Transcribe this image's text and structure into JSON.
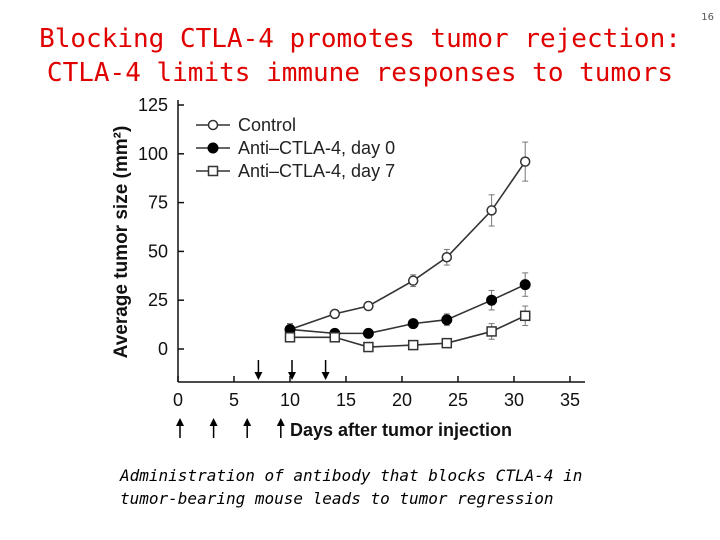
{
  "slide": {
    "title_line1": "Blocking CTLA-4 promotes tumor rejection:",
    "title_line2": "CTLA-4 limits immune responses to tumors",
    "page_number": "16",
    "caption_line1": "Administration of antibody that blocks CTLA-4 in",
    "caption_line2": "tumor-bearing mouse leads to tumor regression"
  },
  "colors": {
    "title": "#e00000",
    "axis": "#111111",
    "series": "#333333"
  },
  "chart_data": {
    "type": "line",
    "title": "",
    "xlabel": "Days after tumor injection",
    "ylabel": "Average tumor size (mm²)",
    "xlim": [
      0,
      35
    ],
    "ylim": [
      0,
      125
    ],
    "xticks": [
      0,
      5,
      10,
      15,
      20,
      25,
      30,
      35
    ],
    "yticks": [
      0,
      25,
      50,
      75,
      100,
      125
    ],
    "legend_position": "top-left",
    "series": [
      {
        "name": "Control",
        "marker": "open-circle",
        "x": [
          10,
          14,
          17,
          21,
          24,
          28,
          31
        ],
        "y": [
          10,
          18,
          22,
          35,
          47,
          71,
          96
        ],
        "err": [
          3,
          2,
          2,
          3,
          4,
          8,
          10
        ]
      },
      {
        "name": "Anti–CTLA-4, day 0",
        "marker": "filled-circle",
        "x": [
          10,
          14,
          17,
          21,
          24,
          28,
          31
        ],
        "y": [
          10,
          8,
          8,
          13,
          15,
          25,
          33
        ],
        "err": [
          3,
          2,
          2,
          2,
          3,
          5,
          6
        ]
      },
      {
        "name": "Anti–CTLA-4, day 7",
        "marker": "open-square",
        "x": [
          10,
          14,
          17,
          21,
          24,
          28,
          31
        ],
        "y": [
          6,
          6,
          1,
          2,
          3,
          9,
          17
        ],
        "err": [
          2,
          2,
          1,
          1,
          1,
          4,
          5
        ]
      }
    ],
    "arrows_above_axis_days": [
      7,
      10,
      13
    ],
    "arrows_below_axis_days": [
      0,
      3,
      6,
      9
    ]
  }
}
